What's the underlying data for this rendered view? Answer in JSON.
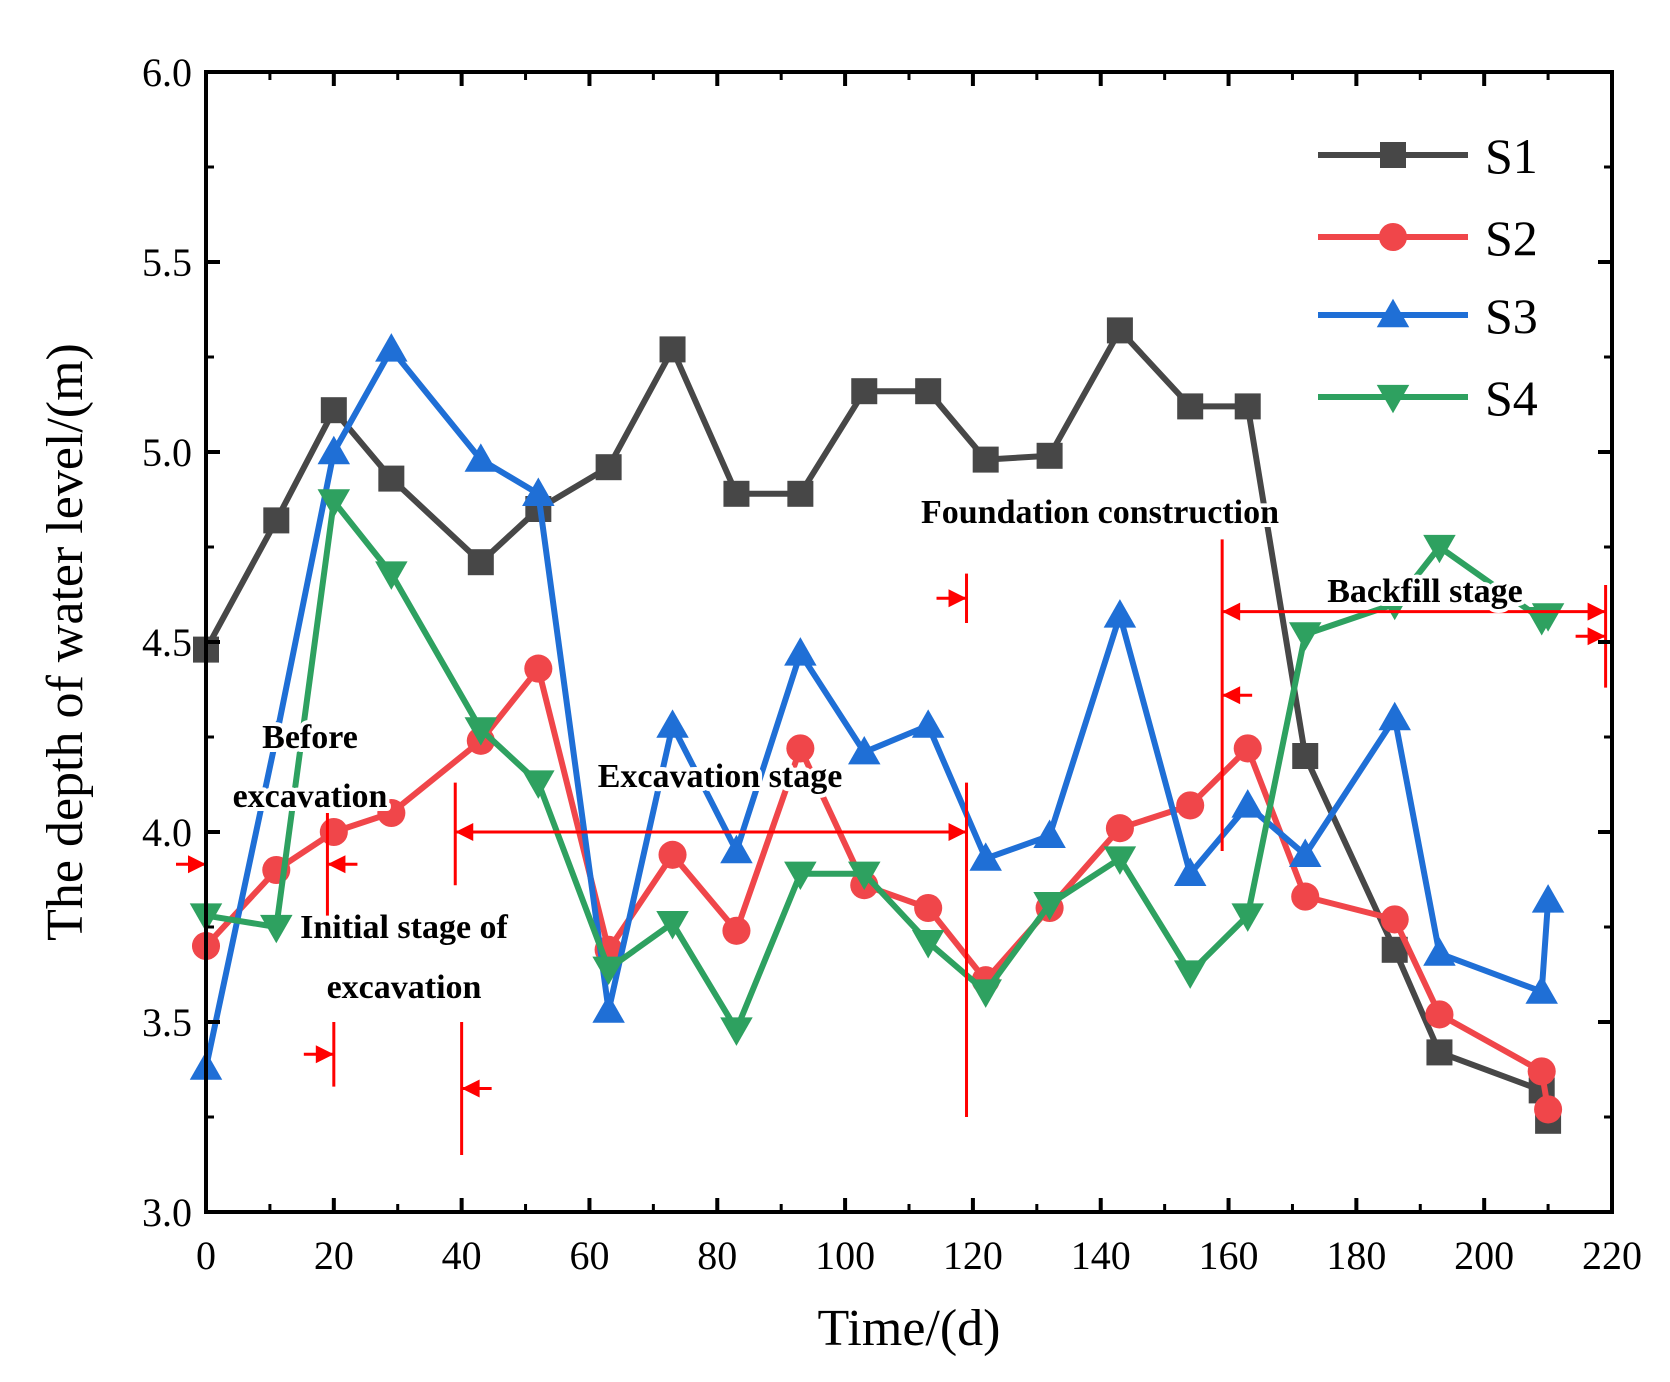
{
  "chart_data": {
    "type": "line",
    "xlabel": "Time/(d)",
    "ylabel": "The depth of water level/(m)",
    "xlim": [
      0,
      220
    ],
    "ylim": [
      3.0,
      6.0
    ],
    "xticks": [
      0,
      20,
      40,
      60,
      80,
      100,
      120,
      140,
      160,
      180,
      200,
      220
    ],
    "yticks": [
      3.0,
      3.5,
      4.0,
      4.5,
      5.0,
      5.5,
      6.0
    ],
    "xtick_labels": [
      "0",
      "20",
      "40",
      "60",
      "80",
      "100",
      "120",
      "140",
      "160",
      "180",
      "200",
      "220"
    ],
    "ytick_labels": [
      "3.0",
      "3.5",
      "4.0",
      "4.5",
      "5.0",
      "5.5",
      "6.0"
    ],
    "legend_position": "top-right",
    "series": [
      {
        "name": "S1",
        "color": "#474747",
        "marker": "square",
        "x": [
          0,
          11,
          20,
          29,
          43,
          52,
          63,
          73,
          83,
          93,
          103,
          113,
          122,
          132,
          143,
          154,
          163,
          172,
          186,
          193,
          209,
          210
        ],
        "y": [
          4.48,
          4.82,
          5.11,
          4.93,
          4.71,
          4.85,
          4.96,
          5.27,
          4.89,
          4.89,
          5.16,
          5.16,
          4.98,
          4.99,
          5.32,
          5.12,
          5.12,
          4.2,
          3.69,
          3.42,
          3.32,
          3.24
        ]
      },
      {
        "name": "S2",
        "color": "#f0464a",
        "marker": "circle",
        "x": [
          0,
          11,
          20,
          29,
          43,
          52,
          63,
          73,
          83,
          93,
          103,
          113,
          122,
          132,
          143,
          154,
          163,
          172,
          186,
          193,
          209,
          210
        ],
        "y": [
          3.7,
          3.9,
          4.0,
          4.05,
          4.24,
          4.43,
          3.69,
          3.94,
          3.74,
          4.22,
          3.86,
          3.8,
          3.61,
          3.8,
          4.01,
          4.07,
          4.22,
          3.83,
          3.77,
          3.52,
          3.37,
          3.27
        ]
      },
      {
        "name": "S3",
        "color": "#1f6fd6",
        "marker": "triangle-up",
        "x": [
          0,
          11,
          20,
          29,
          43,
          52,
          63,
          73,
          83,
          93,
          103,
          113,
          122,
          132,
          143,
          154,
          163,
          172,
          186,
          193,
          209,
          210
        ],
        "y": [
          3.38,
          4.25,
          5.0,
          5.27,
          4.98,
          4.89,
          3.53,
          4.28,
          3.95,
          4.47,
          4.21,
          4.28,
          3.93,
          3.99,
          4.57,
          3.89,
          4.07,
          3.94,
          4.3,
          3.68,
          3.58,
          3.82
        ]
      },
      {
        "name": "S4",
        "color": "#2ea160",
        "marker": "triangle-down",
        "x": [
          0,
          11,
          20,
          29,
          43,
          52,
          63,
          73,
          83,
          93,
          103,
          113,
          122,
          132,
          143,
          154,
          163,
          172,
          186,
          193,
          209,
          210
        ],
        "y": [
          3.78,
          3.75,
          4.87,
          4.68,
          4.27,
          4.13,
          3.64,
          3.76,
          3.48,
          3.89,
          3.89,
          3.71,
          3.58,
          3.81,
          3.93,
          3.63,
          3.78,
          4.52,
          4.6,
          4.75,
          4.56,
          4.57
        ]
      }
    ],
    "stage_labels": {
      "before_line1": "Before",
      "before_line2": "excavation",
      "initial_line1": "Initial stage of",
      "initial_line2": "excavation",
      "excavation": "Excavation stage",
      "foundation": "Foundation construction",
      "backfill": "Backfill stage"
    },
    "stage_boundaries": [
      {
        "x": 0,
        "y_range": [
          3.78,
          4.05
        ],
        "arrow": "right"
      },
      {
        "x": 19,
        "y_range": [
          3.78,
          4.05
        ],
        "arrow": "left"
      },
      {
        "x": 20,
        "y_range": [
          3.33,
          3.5
        ],
        "arrow": "right"
      },
      {
        "x": 40,
        "y_range": [
          3.15,
          3.5
        ],
        "arrow": "left"
      },
      {
        "x": 39,
        "y_range": [
          3.86,
          4.13
        ],
        "arrow": "none"
      },
      {
        "x": 119,
        "y_range": [
          3.25,
          4.13
        ],
        "arrow": "none"
      },
      {
        "x": 119,
        "y_range": [
          4.55,
          4.68
        ],
        "arrow": "right"
      },
      {
        "x": 159,
        "y_range": [
          3.95,
          4.77
        ],
        "arrow": "left"
      },
      {
        "x": 219,
        "y_range": [
          4.38,
          4.65
        ],
        "arrow": "right"
      }
    ],
    "stage_spans": [
      {
        "x_range": [
          39,
          119
        ],
        "y": 4.0
      },
      {
        "x_range": [
          159,
          219
        ],
        "y": 4.58
      }
    ],
    "annotation_color": "#ff0000"
  }
}
